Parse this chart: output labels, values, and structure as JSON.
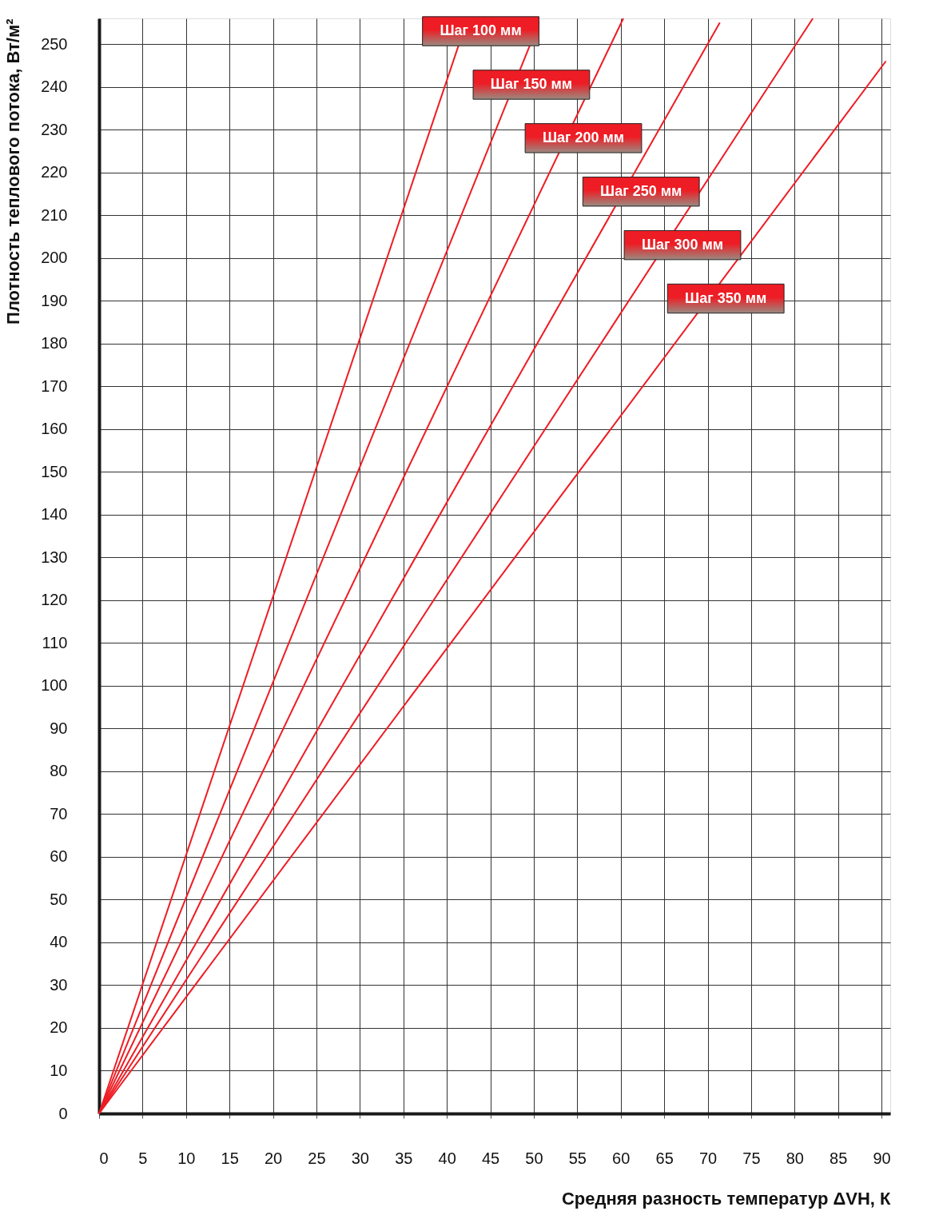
{
  "chart_data": {
    "type": "line",
    "xlabel": "Средняя разность температур ΔVН, К",
    "ylabel": "Плотность теплового потока, Вт/м²",
    "xlim": [
      0,
      91
    ],
    "ylim": [
      0,
      256
    ],
    "xticks": [
      0,
      5,
      10,
      15,
      20,
      25,
      30,
      35,
      40,
      45,
      50,
      55,
      60,
      65,
      70,
      75,
      80,
      85,
      90
    ],
    "yticks": [
      0,
      10,
      20,
      30,
      40,
      50,
      60,
      70,
      80,
      90,
      100,
      110,
      120,
      130,
      140,
      150,
      160,
      170,
      180,
      190,
      200,
      210,
      220,
      230,
      240,
      250
    ],
    "grid": true,
    "marker": "none",
    "line_style": "solid",
    "series": [
      {
        "name": "Шаг 100 мм",
        "color": "#ee1c24",
        "x": [
          0,
          41.4
        ],
        "values": [
          0,
          250
        ]
      },
      {
        "name": "Шаг 150 мм",
        "color": "#ee1c24",
        "x": [
          0,
          50.6
        ],
        "values": [
          0,
          255
        ]
      },
      {
        "name": "Шаг 200 мм",
        "color": "#ee1c24",
        "x": [
          0,
          60.3
        ],
        "values": [
          0,
          256
        ]
      },
      {
        "name": "Шаг 250 мм",
        "color": "#ee1c24",
        "x": [
          0,
          71.4
        ],
        "values": [
          0,
          255
        ]
      },
      {
        "name": "Шаг 300 мм",
        "color": "#ee1c24",
        "x": [
          0,
          82.1
        ],
        "values": [
          0,
          256
        ]
      },
      {
        "name": "Шаг 350 мм",
        "color": "#ee1c24",
        "x": [
          0,
          90.5
        ],
        "values": [
          0,
          246
        ]
      }
    ]
  }
}
